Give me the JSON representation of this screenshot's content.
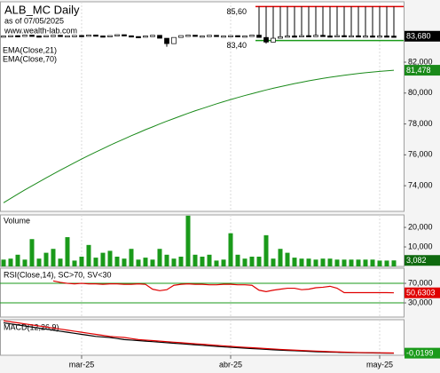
{
  "chart_data": [
    {
      "type": "candlestick",
      "title": "ALB_MC Daily",
      "subtitle": "as of 07/05/2025",
      "source": "www.wealth-lab.com",
      "ylim": [
        72.34,
        85.91
      ],
      "yticks": [
        {
          "value": 82,
          "label": "82,000"
        },
        {
          "value": 80,
          "label": "80,000"
        },
        {
          "value": 78,
          "label": "78,000"
        },
        {
          "value": 76,
          "label": "76,000"
        },
        {
          "value": 74,
          "label": "74,000"
        }
      ],
      "open": [
        83.68,
        83.7,
        83.72,
        83.68,
        83.75,
        83.7,
        83.66,
        83.72,
        83.74,
        83.69,
        83.71,
        83.73,
        83.68,
        83.76,
        83.7,
        83.65,
        83.72,
        83.78,
        83.71,
        83.66,
        83.62,
        83.7,
        83.74,
        83.55,
        83.2,
        83.6,
        83.72,
        83.75,
        83.68,
        83.7,
        83.74,
        83.66,
        83.7,
        83.72,
        83.64,
        83.7,
        83.75,
        83.6,
        83.3,
        83.55,
        83.65,
        83.7,
        83.66,
        83.72,
        83.68,
        83.74,
        83.7,
        83.66,
        83.72,
        83.69,
        83.71,
        83.67,
        83.7,
        83.68,
        83.7,
        83.69
      ],
      "close": [
        83.7,
        83.72,
        83.68,
        83.75,
        83.7,
        83.66,
        83.72,
        83.74,
        83.69,
        83.71,
        83.73,
        83.68,
        83.76,
        83.7,
        83.65,
        83.72,
        83.78,
        83.71,
        83.66,
        83.62,
        83.7,
        83.74,
        83.55,
        83.2,
        83.6,
        83.72,
        83.75,
        83.68,
        83.7,
        83.74,
        83.66,
        83.7,
        83.72,
        83.64,
        83.7,
        83.75,
        83.6,
        83.3,
        83.55,
        83.65,
        83.7,
        83.66,
        83.72,
        83.68,
        83.74,
        83.7,
        83.66,
        83.72,
        83.69,
        83.71,
        83.67,
        83.7,
        83.68,
        83.7,
        83.69,
        83.68
      ],
      "high": [
        null,
        null,
        null,
        null,
        null,
        null,
        null,
        null,
        null,
        null,
        null,
        null,
        null,
        null,
        null,
        null,
        null,
        null,
        null,
        null,
        null,
        null,
        null,
        null,
        null,
        null,
        null,
        null,
        null,
        null,
        null,
        null,
        null,
        null,
        null,
        null,
        85.6,
        85.6,
        85.6,
        85.6,
        85.6,
        85.6,
        85.6,
        85.6,
        85.6,
        85.6,
        85.6,
        85.6,
        85.6,
        85.6,
        85.6,
        85.6,
        85.6,
        85.6,
        85.6,
        85.6
      ],
      "low": [
        null,
        null,
        null,
        null,
        null,
        null,
        null,
        null,
        null,
        null,
        null,
        null,
        null,
        null,
        null,
        null,
        null,
        null,
        null,
        null,
        null,
        null,
        null,
        83.0,
        null,
        null,
        null,
        null,
        null,
        null,
        null,
        null,
        null,
        null,
        null,
        null,
        null,
        83.2,
        null,
        null,
        null,
        null,
        null,
        null,
        null,
        null,
        null,
        null,
        null,
        null,
        null,
        null,
        null,
        null,
        null,
        null
      ],
      "close_labels": {
        "55": "83,680"
      },
      "label_color": "#000000",
      "levels": [
        {
          "value": 85.6,
          "label": "85,60",
          "color": "#e00000"
        },
        {
          "value": 83.4,
          "label": "83,40",
          "color": "#1a9a1a"
        }
      ],
      "indicators": [
        {
          "name": "EMA(Close,21)"
        },
        {
          "name": "EMA(Close,70)",
          "color": "#1a8a1a",
          "value_labels": {
            "55": "81,478"
          },
          "values": [
            72.9,
            73.18,
            73.46,
            73.73,
            73.99,
            74.25,
            74.51,
            74.76,
            75.01,
            75.25,
            75.49,
            75.73,
            75.96,
            76.18,
            76.4,
            76.62,
            76.83,
            77.03,
            77.24,
            77.43,
            77.63,
            77.81,
            78.0,
            78.18,
            78.35,
            78.52,
            78.69,
            78.85,
            79.0,
            79.15,
            79.3,
            79.44,
            79.58,
            79.71,
            79.84,
            79.96,
            80.08,
            80.2,
            80.31,
            80.41,
            80.51,
            80.61,
            80.7,
            80.79,
            80.87,
            80.95,
            81.02,
            81.09,
            81.15,
            81.21,
            81.27,
            81.32,
            81.36,
            81.4,
            81.44,
            81.478
          ]
        }
      ]
    },
    {
      "type": "bar",
      "title": "Volume",
      "color": "#1a9a1a",
      "label_color": "#0f6a0f",
      "ylim": [
        0,
        26400
      ],
      "yticks": [
        {
          "value": 20000,
          "label": "20,000"
        },
        {
          "value": 10000,
          "label": "10,000"
        }
      ],
      "values": [
        3500,
        4000,
        6000,
        3500,
        14000,
        4000,
        7000,
        9000,
        4000,
        15000,
        3000,
        5000,
        11000,
        4500,
        7000,
        8000,
        5000,
        4000,
        9000,
        3500,
        4500,
        3500,
        9000,
        6000,
        4000,
        5000,
        26000,
        6000,
        5000,
        6000,
        3000,
        3500,
        17000,
        6000,
        4000,
        5000,
        5000,
        16000,
        4000,
        9000,
        7000,
        4500,
        4000,
        4000,
        3500,
        4000,
        4000,
        3500,
        3500,
        3500,
        3500,
        3500,
        3500,
        3000,
        3000,
        3082
      ],
      "value_labels": {
        "55": "3,082"
      }
    },
    {
      "type": "line",
      "title": "RSI(Close,14), SC>70, SV<30",
      "grid_color": "#1a9a1a",
      "ylim": [
        1,
        101
      ],
      "yticks": [
        {
          "value": 70,
          "label": "70,000"
        },
        {
          "value": 30,
          "label": "30,000"
        }
      ],
      "series": [
        {
          "color": "#e00000",
          "value_labels": {
            "55": "50,6303"
          },
          "values": [
            null,
            null,
            null,
            null,
            null,
            null,
            null,
            75,
            72,
            70,
            69,
            70,
            69,
            69,
            68,
            69,
            69,
            68,
            68,
            69,
            68,
            58,
            55,
            57,
            66,
            68,
            69,
            68,
            68,
            67,
            67,
            68,
            68,
            67,
            67,
            66,
            56,
            53,
            56,
            58,
            60,
            60,
            57,
            58,
            61,
            62,
            64,
            60,
            51,
            51,
            51,
            51,
            51,
            51,
            51,
            50.6303
          ]
        }
      ]
    },
    {
      "type": "line",
      "title": "MACD(12,26,9)",
      "ylim": [
        -0.04,
        0.3
      ],
      "yticks": [],
      "categories": [
        null,
        null,
        null,
        null,
        null,
        null,
        null,
        null,
        null,
        null,
        null,
        "mar-25",
        null,
        null,
        null,
        null,
        null,
        null,
        null,
        null,
        null,
        null,
        null,
        null,
        null,
        null,
        null,
        null,
        null,
        null,
        null,
        null,
        "abr-25",
        null,
        null,
        null,
        null,
        null,
        null,
        null,
        null,
        null,
        null,
        null,
        null,
        null,
        null,
        null,
        null,
        null,
        null,
        null,
        null,
        "may-25",
        null,
        null
      ],
      "series": [
        {
          "color": "#000000",
          "label_color": "#1a9a1a",
          "value_labels": {
            "55": "-0,0199"
          },
          "values": [
            0.27,
            0.26,
            0.25,
            0.24,
            0.23,
            0.22,
            0.21,
            0.2,
            0.19,
            0.18,
            0.17,
            0.16,
            0.15,
            0.14,
            0.135,
            0.13,
            0.12,
            0.11,
            0.105,
            0.1,
            0.095,
            0.09,
            0.085,
            0.08,
            0.075,
            0.07,
            0.065,
            0.06,
            0.055,
            0.05,
            0.045,
            0.04,
            0.036,
            0.032,
            0.028,
            0.024,
            0.02,
            0.016,
            0.012,
            0.009,
            0.006,
            0.003,
            0,
            -0.003,
            -0.006,
            -0.008,
            -0.01,
            -0.012,
            -0.014,
            -0.015,
            -0.016,
            -0.017,
            -0.018,
            -0.019,
            -0.0195,
            -0.0199
          ]
        },
        {
          "color": "#e00000",
          "values": [
            0.29,
            0.28,
            0.27,
            0.26,
            0.25,
            0.24,
            0.23,
            0.22,
            0.21,
            0.2,
            0.19,
            0.18,
            0.17,
            0.16,
            0.15,
            0.14,
            0.135,
            0.13,
            0.12,
            0.11,
            0.105,
            0.1,
            0.095,
            0.09,
            0.085,
            0.08,
            0.075,
            0.07,
            0.065,
            0.06,
            0.055,
            0.05,
            0.045,
            0.04,
            0.036,
            0.032,
            0.028,
            0.024,
            0.02,
            0.016,
            0.012,
            0.009,
            0.006,
            0.003,
            0,
            -0.003,
            -0.006,
            -0.008,
            -0.01,
            -0.012,
            -0.014,
            -0.015,
            -0.016,
            -0.017,
            -0.018,
            -0.019
          ]
        }
      ]
    }
  ]
}
